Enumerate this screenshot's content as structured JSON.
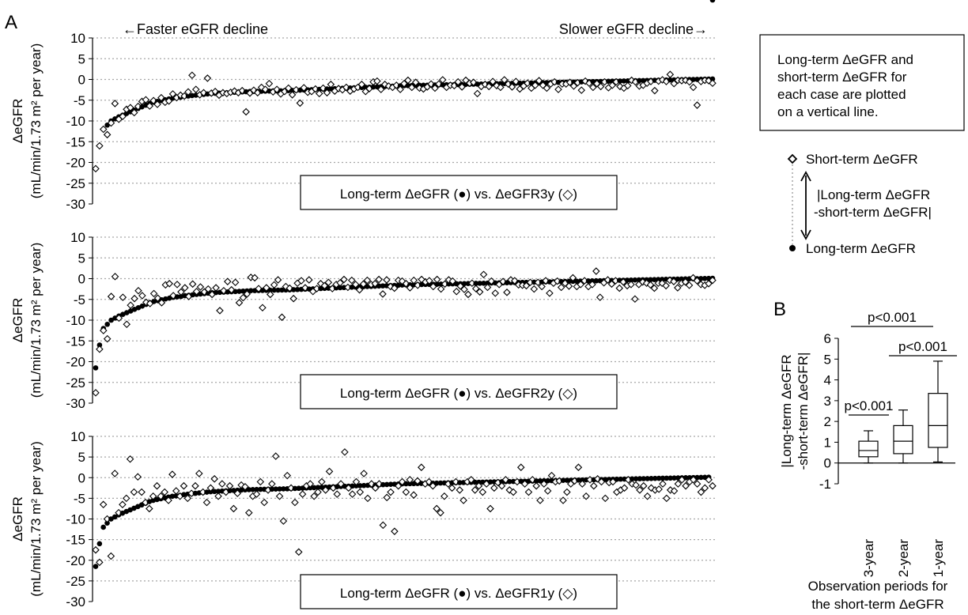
{
  "figure": {
    "panel_a_letter": "A",
    "panel_b_letter": "B",
    "faster_label": "←Faster eGFR decline",
    "slower_label": "Slower eGFR decline→",
    "ylabel_line1": "ΔeGFR",
    "ylabel_line2": "(mL/min/1.73 m² per year)",
    "note_lines": [
      "Long-term ΔeGFR and",
      "short-term ΔeGFR for",
      "each case are plotted",
      "on a vertical line."
    ],
    "legend": {
      "short_label": "Short-term ΔeGFR",
      "long_label": "Long-term ΔeGFR",
      "diff_line1": "|Long-term ΔeGFR",
      "diff_line2": "-short-term ΔeGFR|"
    },
    "colors": {
      "ink": "#000000",
      "grid": "#a6a6a6",
      "marker_fill": "#ffffff"
    }
  },
  "chart_data": [
    {
      "type": "scatter",
      "panel": "A-top",
      "annotation": "Long-term ΔeGFR (●) vs. ΔeGFR3y (◇)",
      "ylim": [
        -30,
        10
      ],
      "yticks": [
        10,
        5,
        0,
        -5,
        -10,
        -15,
        -20,
        -25,
        -30
      ],
      "grid": true,
      "n": 160,
      "long_term": [
        -21.5,
        -16,
        -12,
        -11,
        -10,
        -9.5,
        -9,
        -8.6,
        -8.2,
        -7.8,
        -7.4,
        -7,
        -6.6,
        -6.2,
        -5.8,
        -5.5,
        -5.3,
        -5.1,
        -4.9,
        -4.7,
        -4.5,
        -4.4,
        -4.3,
        -4.1,
        -4,
        -3.9,
        -3.8,
        -3.7,
        -3.6,
        -3.5,
        -3.4,
        -3.35,
        -3.3,
        -3.25,
        -3.2,
        -3.15,
        -3.1,
        -3.05,
        -3,
        -2.95,
        -2.9,
        -2.88,
        -2.86,
        -2.84,
        -2.82,
        -2.8,
        -2.78,
        -2.76,
        -2.74,
        -2.72,
        -2.7,
        -2.66,
        -2.62,
        -2.58,
        -2.54,
        -2.5,
        -2.46,
        -2.42,
        -2.38,
        -2.34,
        -2.3,
        -2.26,
        -2.22,
        -2.18,
        -2.14,
        -2.1,
        -2.06,
        -2.02,
        -1.98,
        -1.94,
        -1.9,
        -1.86,
        -1.82,
        -1.78,
        -1.74,
        -1.7,
        -1.66,
        -1.62,
        -1.58,
        -1.54,
        -1.5,
        -1.48,
        -1.46,
        -1.44,
        -1.42,
        -1.4,
        -1.38,
        -1.36,
        -1.34,
        -1.32,
        -1.3,
        -1.28,
        -1.26,
        -1.24,
        -1.22,
        -1.2,
        -1.18,
        -1.16,
        -1.14,
        -1.12,
        -1.1,
        -1.08,
        -1.06,
        -1.04,
        -1.02,
        -1,
        -0.98,
        -0.96,
        -0.94,
        -0.92,
        -0.9,
        -0.88,
        -0.86,
        -0.84,
        -0.82,
        -0.8,
        -0.78,
        -0.76,
        -0.74,
        -0.72,
        -0.7,
        -0.68,
        -0.66,
        -0.64,
        -0.62,
        -0.6,
        -0.58,
        -0.56,
        -0.54,
        -0.52,
        -0.5,
        -0.48,
        -0.46,
        -0.44,
        -0.42,
        -0.4,
        -0.38,
        -0.36,
        -0.34,
        -0.32,
        -0.3,
        -0.28,
        -0.26,
        -0.24,
        -0.22,
        -0.2,
        -0.18,
        -0.16,
        -0.14,
        -0.12,
        -0.1,
        -0.08,
        -0.06,
        -0.04,
        -0.02,
        0,
        0.02,
        0.04,
        0.06,
        0.08,
        0.1
      ],
      "short_term": [
        -21.5,
        -16,
        -12,
        -13.3,
        -10.5,
        -5.8,
        -9.6,
        -8.9,
        -7.2,
        -6.8,
        -8,
        -6.5,
        -5.3,
        -4.9,
        -6.4,
        -5.1,
        -6,
        -4.4,
        -5.5,
        -5.2,
        -3.5,
        -4.4,
        -3.8,
        -4,
        -3,
        1,
        -2.4,
        -3.7,
        -3.2,
        0.3,
        -3.3,
        -2.9,
        -3.8,
        -3.2,
        -3.4,
        -3.1,
        -2.8,
        -3.2,
        -2.7,
        -7.8,
        -3.3,
        -2.6,
        -3.2,
        -1.9,
        -2.4,
        -1,
        -3,
        -2.4,
        -3.5,
        -2.9,
        -2.1,
        -3.7,
        -2.5,
        -5.7,
        -2,
        -3.1,
        -2.9,
        -2.3,
        -3.4,
        -2.1,
        -3.2,
        -1.2,
        -2.8,
        -2.2,
        -2.5,
        -1.9,
        -2.8,
        -2.3,
        -1.9,
        -1.2,
        -2.9,
        -2.2,
        -0.6,
        -0.4,
        -2.4,
        -1.2,
        -1.6,
        -1.9,
        -1.4,
        -2.4,
        -1,
        -0.2,
        -1.9,
        -0.7,
        -2.1,
        -2.3,
        -1.8,
        -1.1,
        -2.1,
        -1.1,
        -0.1,
        -1.9,
        -1.4,
        -1.5,
        -0.6,
        -1.8,
        -0.2,
        -0.9,
        -0.7,
        -3.4,
        -1.7,
        -1.2,
        -1.7,
        -0.5,
        -1.5,
        -1.9,
        -0.1,
        -1.1,
        -1.8,
        -0.5,
        -2.3,
        -1.6,
        -0.9,
        -2.1,
        -1.4,
        -0.3,
        -1.4,
        -2.1,
        -1.1,
        -0.6,
        -2.4,
        -1.1,
        -1.1,
        -0.7,
        -1.6,
        -0.8,
        -2.6,
        -0.4,
        -0.9,
        -1.9,
        -1,
        -1.7,
        -0.6,
        -2,
        -1.4,
        -0.6,
        -1.7,
        -2.1,
        -1.5,
        -0.2,
        -0.6,
        -1.6,
        -1.4,
        -0.9,
        -0.5,
        -2.7,
        -0.4,
        -0.1,
        -0.5,
        1.2,
        -1,
        -0.2,
        -0.3,
        -0.2,
        -0.6,
        -1.9,
        -6.2,
        -0.5,
        -0.2,
        -0.3,
        -0.9
      ]
    },
    {
      "type": "scatter",
      "panel": "A-middle",
      "annotation": "Long-term ΔeGFR (●) vs. ΔeGFR2y (◇)",
      "ylim": [
        -30,
        10
      ],
      "yticks": [
        10,
        5,
        0,
        -5,
        -10,
        -15,
        -20,
        -25,
        -30
      ],
      "grid": true,
      "n": 160,
      "long_term": [
        -21.5,
        -16,
        -12,
        -11,
        -10,
        -9.5,
        -9,
        -8.6,
        -8.2,
        -7.8,
        -7.4,
        -7,
        -6.6,
        -6.2,
        -5.8,
        -5.5,
        -5.3,
        -5.1,
        -4.9,
        -4.7,
        -4.5,
        -4.4,
        -4.3,
        -4.1,
        -4,
        -3.9,
        -3.8,
        -3.7,
        -3.6,
        -3.5,
        -3.4,
        -3.35,
        -3.3,
        -3.25,
        -3.2,
        -3.15,
        -3.1,
        -3.05,
        -3,
        -2.95,
        -2.9,
        -2.88,
        -2.86,
        -2.84,
        -2.82,
        -2.8,
        -2.78,
        -2.76,
        -2.74,
        -2.72,
        -2.7,
        -2.66,
        -2.62,
        -2.58,
        -2.54,
        -2.5,
        -2.46,
        -2.42,
        -2.38,
        -2.34,
        -2.3,
        -2.26,
        -2.22,
        -2.18,
        -2.14,
        -2.1,
        -2.06,
        -2.02,
        -1.98,
        -1.94,
        -1.9,
        -1.86,
        -1.82,
        -1.78,
        -1.74,
        -1.7,
        -1.66,
        -1.62,
        -1.58,
        -1.54,
        -1.5,
        -1.48,
        -1.46,
        -1.44,
        -1.42,
        -1.4,
        -1.38,
        -1.36,
        -1.34,
        -1.32,
        -1.3,
        -1.28,
        -1.26,
        -1.24,
        -1.22,
        -1.2,
        -1.18,
        -1.16,
        -1.14,
        -1.12,
        -1.1,
        -1.08,
        -1.06,
        -1.04,
        -1.02,
        -1,
        -0.98,
        -0.96,
        -0.94,
        -0.92,
        -0.9,
        -0.88,
        -0.86,
        -0.84,
        -0.82,
        -0.8,
        -0.78,
        -0.76,
        -0.74,
        -0.72,
        -0.7,
        -0.68,
        -0.66,
        -0.64,
        -0.62,
        -0.6,
        -0.58,
        -0.56,
        -0.54,
        -0.52,
        -0.5,
        -0.48,
        -0.46,
        -0.44,
        -0.42,
        -0.4,
        -0.38,
        -0.36,
        -0.34,
        -0.32,
        -0.3,
        -0.28,
        -0.26,
        -0.24,
        -0.22,
        -0.2,
        -0.18,
        -0.16,
        -0.14,
        -0.12,
        -0.1,
        -0.08,
        -0.06,
        -0.04,
        -0.02,
        0,
        0.02,
        0.04,
        0.06,
        0.08,
        0.1
      ],
      "short_term": [
        -27.5,
        -17,
        -12.5,
        -14.5,
        -4.3,
        0.5,
        -9.5,
        -4.5,
        -11,
        -6.4,
        -4.8,
        -2.9,
        -4.1,
        -5.7,
        -6,
        -3.6,
        -4.7,
        -5.8,
        -1.5,
        -1.2,
        -4.1,
        -1.4,
        -3.2,
        -2.2,
        -4.3,
        -1.3,
        -3.1,
        -2,
        -3.2,
        -2.5,
        -3.8,
        -2.2,
        -7.7,
        -2.9,
        -0.7,
        -2.7,
        -0.9,
        -5.8,
        -4.6,
        -3.7,
        0.3,
        0.2,
        -2.4,
        -7,
        -2.2,
        -3.8,
        -1.5,
        -0.3,
        -9.3,
        -1.9,
        -2.3,
        -4.8,
        -1.1,
        -0.5,
        -2.2,
        -0.3,
        -3.1,
        -2.4,
        -1.2,
        -1.7,
        -0.9,
        -2.4,
        -1.4,
        -1,
        -0.2,
        -2.1,
        -0.4,
        -1.4,
        -2.7,
        -1.3,
        -0.4,
        -1.4,
        -1.2,
        -0.2,
        -3.7,
        -0.3,
        -1.9,
        -2.3,
        -0.4,
        -0.6,
        -1.2,
        -2.2,
        -0.4,
        -1.6,
        -0.2,
        -0.8,
        -0.5,
        -1.9,
        -0.2,
        -2.5,
        -1.3,
        -0.3,
        -0.6,
        -3.1,
        -1.8,
        -2.6,
        -3.8,
        -1.1,
        -2.4,
        -3.2,
        1,
        -2.1,
        -0.6,
        -3.5,
        -1.4,
        -0.7,
        -3.3,
        -0.3,
        -0.5,
        -1.5,
        -1.6,
        -1.7,
        -0.9,
        -2.5,
        -0.9,
        -1.9,
        -0.5,
        -3.5,
        -1.1,
        -0.6,
        -2.1,
        -1.1,
        -1.8,
        0.2,
        -1.9,
        -1.4,
        -0.5,
        -1.9,
        -1.4,
        1.8,
        -4.5,
        -1,
        -0.3,
        -1.3,
        -0.5,
        -2.3,
        -0.8,
        -1.7,
        -1.4,
        -4.9,
        -1.4,
        -0.8,
        -1.1,
        -1.5,
        -2.3,
        -1.1,
        -1.1,
        -1.7,
        -0.4,
        -0.7,
        -2.2,
        -1.1,
        -0.8,
        -1.6,
        0.2,
        -0.5,
        -1.4,
        -1.6,
        -1.2,
        -0.4
      ]
    },
    {
      "type": "scatter",
      "panel": "A-bottom",
      "annotation": "Long-term ΔeGFR (●) vs. ΔeGFR1y (◇)",
      "ylim": [
        -30,
        10
      ],
      "yticks": [
        10,
        5,
        0,
        -5,
        -10,
        -15,
        -20,
        -25,
        -30
      ],
      "grid": true,
      "n": 160,
      "long_term": [
        -21.5,
        -16,
        -12,
        -11,
        -10,
        -9.5,
        -9,
        -8.6,
        -8.2,
        -7.8,
        -7.4,
        -7,
        -6.6,
        -6.2,
        -5.8,
        -5.5,
        -5.3,
        -5.1,
        -4.9,
        -4.7,
        -4.5,
        -4.4,
        -4.3,
        -4.1,
        -4,
        -3.9,
        -3.8,
        -3.7,
        -3.6,
        -3.5,
        -3.4,
        -3.35,
        -3.3,
        -3.25,
        -3.2,
        -3.15,
        -3.1,
        -3.05,
        -3,
        -2.95,
        -2.9,
        -2.88,
        -2.86,
        -2.84,
        -2.82,
        -2.8,
        -2.78,
        -2.76,
        -2.74,
        -2.72,
        -2.7,
        -2.66,
        -2.62,
        -2.58,
        -2.54,
        -2.5,
        -2.46,
        -2.42,
        -2.38,
        -2.34,
        -2.3,
        -2.26,
        -2.22,
        -2.18,
        -2.14,
        -2.1,
        -2.06,
        -2.02,
        -1.98,
        -1.94,
        -1.9,
        -1.86,
        -1.82,
        -1.78,
        -1.74,
        -1.7,
        -1.66,
        -1.62,
        -1.58,
        -1.54,
        -1.5,
        -1.48,
        -1.46,
        -1.44,
        -1.42,
        -1.4,
        -1.38,
        -1.36,
        -1.34,
        -1.32,
        -1.3,
        -1.28,
        -1.26,
        -1.24,
        -1.22,
        -1.2,
        -1.18,
        -1.16,
        -1.14,
        -1.12,
        -1.1,
        -1.08,
        -1.06,
        -1.04,
        -1.02,
        -1,
        -0.98,
        -0.96,
        -0.94,
        -0.92,
        -0.9,
        -0.88,
        -0.86,
        -0.84,
        -0.82,
        -0.8,
        -0.78,
        -0.76,
        -0.74,
        -0.72,
        -0.7,
        -0.68,
        -0.66,
        -0.64,
        -0.62,
        -0.6,
        -0.58,
        -0.56,
        -0.54,
        -0.52,
        -0.5,
        -0.48,
        -0.46,
        -0.44,
        -0.42,
        -0.4,
        -0.38,
        -0.36,
        -0.34,
        -0.32,
        -0.3,
        -0.28,
        -0.26,
        -0.24,
        -0.22,
        -0.2,
        -0.18,
        -0.16,
        -0.14,
        -0.12,
        -0.1,
        -0.08,
        -0.06,
        -0.04,
        -0.02,
        0,
        0.02,
        0.04,
        0.06,
        0.08,
        0.1
      ],
      "short_term": [
        -17.5,
        -20.5,
        -6.5,
        -10,
        -19,
        1,
        -8.5,
        -6.5,
        -5,
        4.5,
        -3.5,
        0.2,
        -3.5,
        -6,
        -7.5,
        -4.5,
        -2,
        -4.5,
        -3.5,
        -5.5,
        0.8,
        -3.2,
        -4.5,
        -2,
        -5,
        -3.8,
        -2,
        1,
        -3.5,
        -6,
        -2.5,
        -0.3,
        -4.5,
        -1.5,
        -3.5,
        -2,
        -7.5,
        -3.8,
        -1.8,
        -2.2,
        -8.5,
        -4.5,
        -4,
        -1,
        -6,
        -3,
        -1.5,
        5.2,
        -4.5,
        -10.5,
        0.5,
        -2.5,
        -6,
        -18,
        -4,
        -2,
        -1.5,
        -4.5,
        -3.5,
        -1,
        -3,
        1.5,
        -2.5,
        -4,
        -1.5,
        6.2,
        -2.5,
        -4,
        -1,
        -3.5,
        1,
        -5,
        -1.5,
        -2.5,
        -1.5,
        -11.5,
        -4.8,
        -3.5,
        -13,
        -2,
        -1,
        -3.5,
        -0.5,
        -4.2,
        -0.8,
        2.5,
        -1.5,
        -1,
        -2,
        -7.5,
        -8.5,
        -4.5,
        -1.5,
        -2.5,
        -1,
        -3,
        -5.5,
        -1,
        -0.5,
        -3,
        -2,
        -3.5,
        -1.5,
        -7.5,
        -2.5,
        -1.2,
        -2,
        -0.5,
        -3,
        -3.5,
        -1,
        2.5,
        -1.5,
        -3.5,
        -0.5,
        -2,
        -5.5,
        -1.5,
        -3.2,
        0.5,
        -1,
        -0.8,
        -5.5,
        -3.5,
        -1.5,
        -0.8,
        2.5,
        -1.5,
        -4.5,
        -0.5,
        -2,
        -0.3,
        -1,
        -5,
        -1.2,
        -1,
        -3.5,
        -3,
        -2.5,
        -0.5,
        -1.5,
        -1.8,
        -3,
        -2,
        -4.5,
        -2.5,
        -3,
        -2.8,
        -1.5,
        -5,
        -3,
        -3.2,
        -1.5,
        -0.5,
        -2,
        -1,
        -0.5,
        -1.5,
        -3.5,
        -2.5,
        -0.5,
        -2
      ]
    },
    {
      "type": "box",
      "panel": "B",
      "categories": [
        "3-year",
        "2-year",
        "1-year"
      ],
      "boxes": [
        {
          "label": "3-year",
          "min": 0,
          "q1": 0.3,
          "median": 0.6,
          "q3": 1.05,
          "max": 1.55
        },
        {
          "label": "2-year",
          "min": 0,
          "q1": 0.45,
          "median": 1.05,
          "q3": 1.8,
          "max": 2.55
        },
        {
          "label": "1-year",
          "min": 0.05,
          "q1": 0.75,
          "median": 1.8,
          "q3": 3.35,
          "max": 4.9
        }
      ],
      "ylim": [
        -1,
        6
      ],
      "yticks": [
        6,
        5,
        4,
        3,
        2,
        1,
        0,
        -1
      ],
      "ylabel_line1": "|Long-term ΔeGFR",
      "ylabel_line2": "-short-term ΔeGFR|",
      "xlabel_line1": "Observation periods for",
      "xlabel_line2": "the short-term ΔeGFR",
      "comparisons": [
        {
          "from": "3-year",
          "to": "1-year",
          "label": "p<0.001"
        },
        {
          "from": "2-year",
          "to": "1-year",
          "label": "p<0.001"
        },
        {
          "from": "3-year",
          "to": "2-year",
          "label": "p<0.001"
        }
      ]
    }
  ]
}
